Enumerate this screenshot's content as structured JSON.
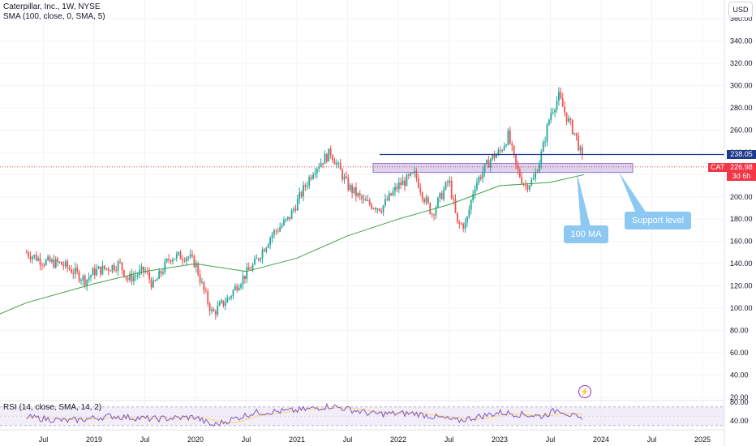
{
  "legend": {
    "title": "Caterpillar, Inc., 1W, NYSE",
    "indicator": "SMA (100, close, 0, SMA, 5)",
    "rsi": "RSI (14, close, SMA, 14, 2)"
  },
  "currency": "USD",
  "price_tags": {
    "level": "238.05",
    "symbol": "CAT",
    "last": "226.98",
    "countdown": "3d 6h"
  },
  "annotations": {
    "ma": "100 MA",
    "support": "Support level"
  },
  "colors": {
    "up": "#26a69a",
    "down": "#ef5350",
    "sma": "#43a047",
    "level_line": "#1e3a8a",
    "zone": "#b39ddb",
    "rsi_line": "#7e57c2",
    "rsi_ma": "#f9d56e",
    "callout": "#8cc8f2",
    "last_price": "#f23645"
  },
  "chart_data": {
    "type": "line",
    "price_axis": {
      "ylim": [
        20,
        370
      ],
      "ticks": [
        "360.00",
        "340.00",
        "320.00",
        "300.00",
        "280.00",
        "260.00",
        "240.00",
        "220.00",
        "200.00",
        "180.00",
        "160.00",
        "140.00",
        "120.00",
        "100.00",
        "80.00",
        "60.00",
        "40.00",
        "20.00"
      ]
    },
    "time_axis": {
      "labels": [
        "Jul",
        "2019",
        "Jul",
        "2020",
        "Jul",
        "2021",
        "Jul",
        "2022",
        "Jul",
        "2023",
        "Jul",
        "2024",
        "Jul",
        "2025"
      ]
    },
    "series": [
      {
        "name": "CAT",
        "x": [
          "2018-05",
          "2018-07",
          "2018-09",
          "2018-10",
          "2018-12",
          "2019-01",
          "2019-03",
          "2019-04",
          "2019-05",
          "2019-07",
          "2019-08",
          "2019-10",
          "2019-12",
          "2020-01",
          "2020-02",
          "2020-03",
          "2020-05",
          "2020-06",
          "2020-08",
          "2020-10",
          "2020-12",
          "2021-01",
          "2021-03",
          "2021-05",
          "2021-07",
          "2021-09",
          "2021-11",
          "2022-01",
          "2022-03",
          "2022-04",
          "2022-05",
          "2022-07",
          "2022-08",
          "2022-09",
          "2022-10",
          "2022-12",
          "2023-01",
          "2023-02",
          "2023-03",
          "2023-04",
          "2023-05",
          "2023-06",
          "2023-07",
          "2023-08",
          "2023-09",
          "2023-10",
          "2023-11"
        ],
        "y": [
          150,
          142,
          140,
          136,
          125,
          133,
          137,
          140,
          126,
          134,
          120,
          146,
          147,
          140,
          115,
          95,
          110,
          122,
          140,
          166,
          180,
          195,
          225,
          240,
          210,
          195,
          190,
          210,
          220,
          200,
          185,
          215,
          175,
          175,
          210,
          235,
          240,
          255,
          225,
          210,
          215,
          240,
          275,
          290,
          270,
          255,
          227
        ]
      },
      {
        "name": "SMA 100",
        "x": [
          "2018-05",
          "2019-01",
          "2019-07",
          "2020-01",
          "2020-07",
          "2021-01",
          "2021-07",
          "2022-01",
          "2022-07",
          "2023-01",
          "2023-07",
          "2023-11"
        ],
        "y": [
          105,
          122,
          133,
          140,
          133,
          145,
          165,
          180,
          193,
          210,
          213,
          220
        ]
      },
      {
        "name": "RSI",
        "x": [
          "2018-05",
          "2018-10",
          "2019-03",
          "2019-08",
          "2020-01",
          "2020-03",
          "2020-08",
          "2021-01",
          "2021-05",
          "2021-10",
          "2022-03",
          "2022-08",
          "2023-01",
          "2023-06",
          "2023-08",
          "2023-11"
        ],
        "y": [
          48,
          40,
          50,
          44,
          48,
          30,
          58,
          62,
          72,
          55,
          56,
          40,
          58,
          50,
          65,
          38
        ]
      }
    ],
    "levels": [
      238.05
    ],
    "zone": [
      222,
      230
    ],
    "last_price": 226.98,
    "rsi_axis": {
      "ylim": [
        20,
        100
      ],
      "ticks": [
        "80.00",
        "40.00"
      ],
      "bands": [
        70,
        30
      ]
    }
  }
}
